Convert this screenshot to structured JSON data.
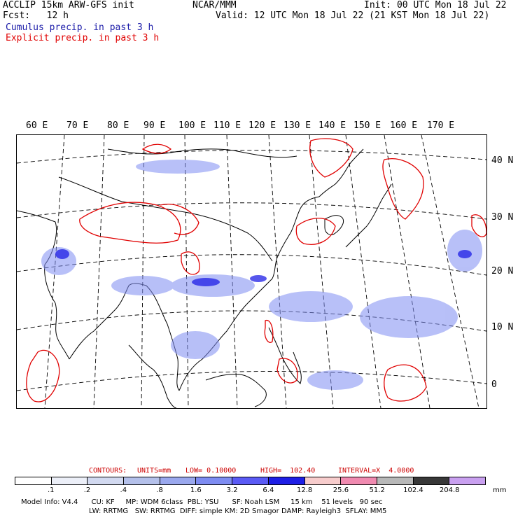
{
  "header": {
    "model_line": "ACCLIP 15km ARW-GFS init",
    "fcst_line": "Fcst:   12 h",
    "org": "NCAR/MMM",
    "init": "Init: 00 UTC Mon 18 Jul 22",
    "valid": "Valid: 12 UTC Mon 18 Jul 22 (21 KST Mon 18 Jul 22)",
    "cumulus_label": "Cumulus precip. in past 3 h",
    "explicit_label": "Explicit precip. in past 3 h"
  },
  "colors": {
    "cumulus": "#1a1aa8",
    "explicit": "#e00000",
    "contour_info": "#cc0000"
  },
  "map": {
    "lon_labels": [
      "60 E",
      "70 E",
      "80 E",
      "90 E",
      "100 E",
      "110 E",
      "120 E",
      "130 E",
      "140 E",
      "150 E",
      "160 E",
      "170 E"
    ],
    "lat_labels": [
      "40 N",
      "30 N",
      "20 N",
      "10 N",
      "0"
    ]
  },
  "contours": {
    "title": "CONTOURS:",
    "units": "UNITS=mm",
    "low": "LOW= 0.10000",
    "high": "HIGH=  102.40",
    "interval": "INTERVAL=X  4.0000"
  },
  "colorbar": {
    "unit": "mm",
    "ticks": [
      ".1",
      ".2",
      ".4",
      ".8",
      "1.6",
      "3.2",
      "6.4",
      "12.8",
      "25.6",
      "51.2",
      "102.4",
      "204.8"
    ],
    "colors": [
      "#ffffff",
      "#eceff8",
      "#d2d9f0",
      "#b4c0ea",
      "#9aa8ee",
      "#7e8cf2",
      "#5a5af5",
      "#1e1ee6",
      "#f7cccc",
      "#f08ab0",
      "#b8b8b8",
      "#383838",
      "#c9a0f0"
    ]
  },
  "footer": {
    "line1": "Model Info: V4.4      CU: KF     MP: WDM 6class  PBL: YSU      SF: Noah LSM     15 km    51 levels   90 sec",
    "line2": "LW: RRTMG   SW: RRTMG  DIFF: simple KM: 2D Smagor DAMP: Rayleigh3  SFLAY: MM5"
  }
}
